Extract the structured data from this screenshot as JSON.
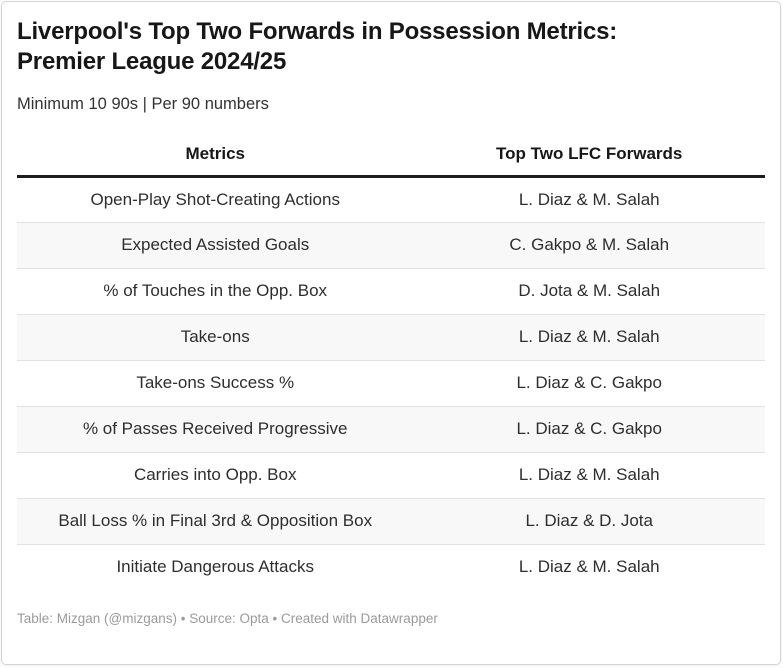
{
  "header": {
    "title": "Liverpool's Top Two Forwards in Possession Metrics: Premier League 2024/25",
    "title_lines": [
      "Liverpool's Top Two Forwards in Possession Metrics:",
      "Premier League 2024/25"
    ],
    "subtitle": "Minimum 10 90s | Per 90 numbers"
  },
  "table": {
    "columns": [
      "Metrics",
      "Top Two LFC Forwards"
    ],
    "rows": [
      [
        "Open-Play Shot-Creating Actions",
        "L. Diaz & M. Salah"
      ],
      [
        "Expected Assisted Goals",
        "C. Gakpo & M. Salah"
      ],
      [
        "% of Touches in the Opp. Box",
        "D. Jota & M. Salah"
      ],
      [
        "Take-ons",
        "L. Diaz & M. Salah"
      ],
      [
        "Take-ons Success %",
        "L. Diaz & C. Gakpo"
      ],
      [
        "% of Passes Received Progressive",
        "L. Diaz & C. Gakpo"
      ],
      [
        "Carries into Opp. Box",
        "L. Diaz & M. Salah"
      ],
      [
        "Ball Loss % in Final 3rd & Opposition Box",
        "L. Diaz & D. Jota"
      ],
      [
        "Initiate Dangerous Attacks",
        "L. Diaz & M. Salah"
      ]
    ]
  },
  "footer": {
    "credits": "Table: Mizgan (@mizgans) • Source: Opta • Created with Datawrapper"
  },
  "colors": {
    "title_text": "#171717",
    "body_text": "#2e2e2e",
    "header_rule": "#1d1d1d",
    "alt_row_background": "#f8f8f8",
    "row_divider": "#e2e2e2",
    "footer_text": "#9b9b9b",
    "card_border": "#d4d4d4"
  }
}
